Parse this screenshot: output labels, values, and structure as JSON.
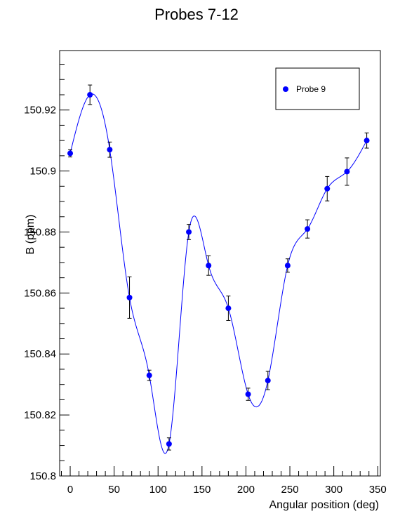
{
  "chart_data": {
    "type": "scatter",
    "title": "Probes 7-12",
    "xlabel": "Angular position (deg)",
    "ylabel": "B (ppm)",
    "xlim": [
      -12,
      353
    ],
    "ylim": [
      150.8,
      150.9395
    ],
    "x_ticks": [
      0,
      50,
      100,
      150,
      200,
      250,
      300,
      350
    ],
    "x_tick_labels": [
      "0",
      "50",
      "100",
      "150",
      "200",
      "250",
      "300",
      "350"
    ],
    "y_ticks": [
      150.8,
      150.82,
      150.84,
      150.86,
      150.88,
      150.9,
      150.92
    ],
    "y_tick_labels": [
      "150.8",
      "150.82",
      "150.84",
      "150.86",
      "150.88",
      "150.9",
      "150.92"
    ],
    "legend_position": "top-right",
    "grid": false,
    "series": [
      {
        "name": "Probe 9",
        "color": "#0000ff",
        "x": [
          0,
          22.5,
          45,
          67.5,
          90,
          112.5,
          135,
          157.5,
          180,
          202.5,
          225,
          247.5,
          270,
          292.5,
          315,
          337.5
        ],
        "y": [
          150.9058,
          150.925,
          150.907,
          150.8585,
          150.833,
          150.8105,
          150.88,
          150.869,
          150.855,
          150.8268,
          150.8313,
          150.869,
          150.881,
          150.8942,
          150.8998,
          150.91
        ],
        "yerr": [
          0.0012,
          0.0032,
          0.0025,
          0.0068,
          0.0017,
          0.002,
          0.0025,
          0.0032,
          0.004,
          0.002,
          0.003,
          0.0022,
          0.003,
          0.004,
          0.0045,
          0.0025
        ]
      }
    ]
  }
}
